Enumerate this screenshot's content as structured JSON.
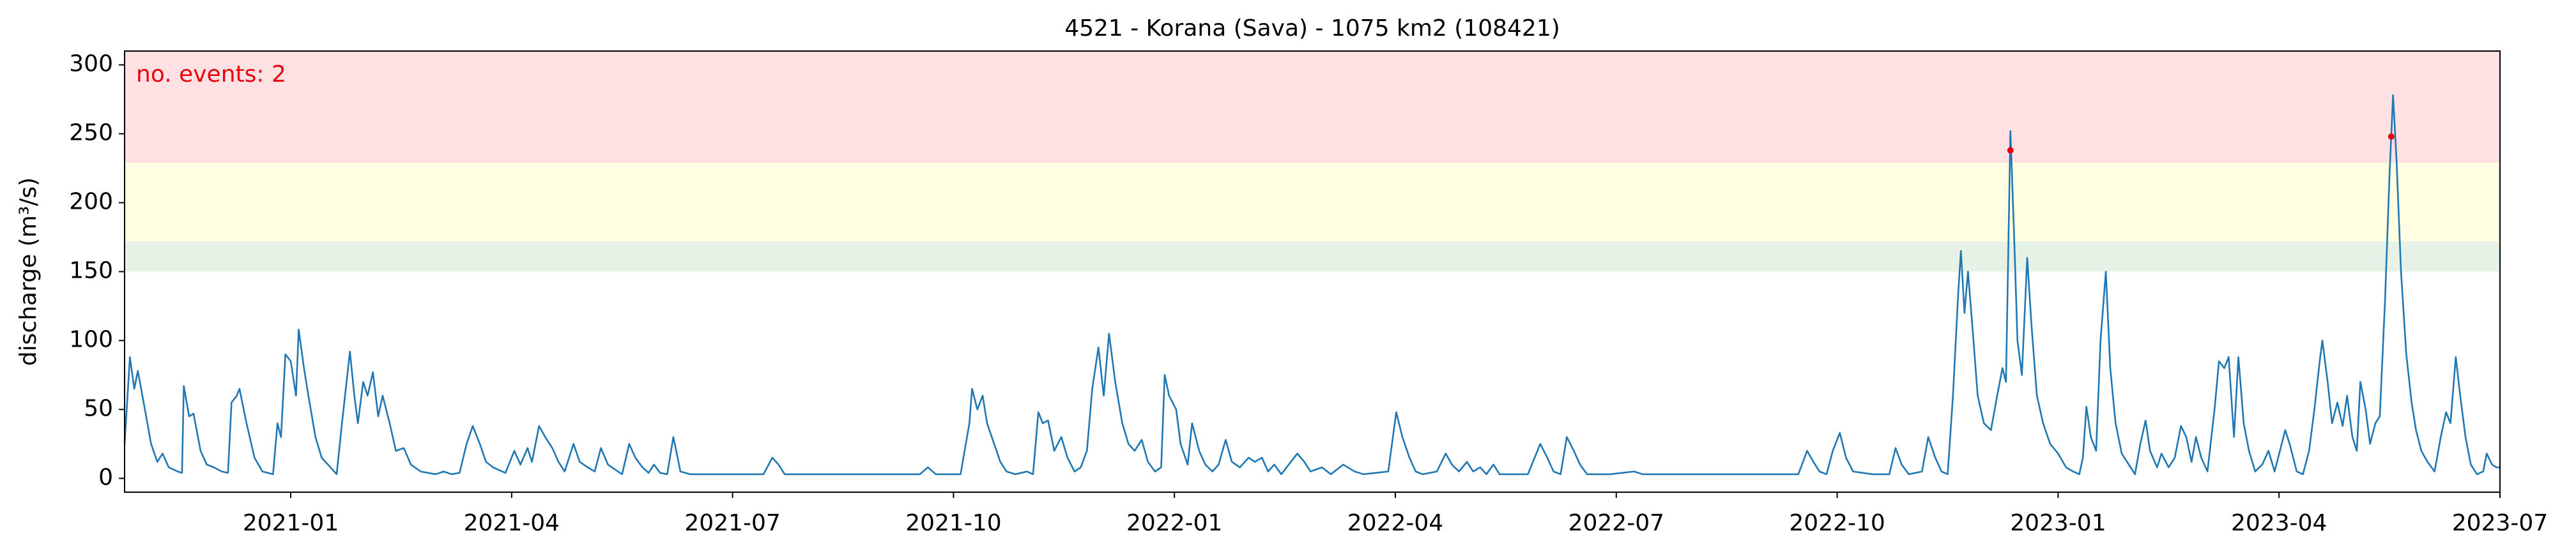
{
  "chart_data": {
    "type": "line",
    "title": "4521 - Korana (Sava) - 1075 km2 (108421)",
    "ylabel": "discharge (m³/s)",
    "annotation": "no. events: 2",
    "xlim": [
      2020.812,
      2023.5
    ],
    "ylim": [
      -10,
      310
    ],
    "xticks": [
      {
        "value": 2021,
        "label": "2021-01"
      },
      {
        "value": 2021.25,
        "label": "2021-04"
      },
      {
        "value": 2021.5,
        "label": "2021-07"
      },
      {
        "value": 2021.75,
        "label": "2021-10"
      },
      {
        "value": 2022,
        "label": "2022-01"
      },
      {
        "value": 2022.25,
        "label": "2022-04"
      },
      {
        "value": 2022.5,
        "label": "2022-07"
      },
      {
        "value": 2022.75,
        "label": "2022-10"
      },
      {
        "value": 2023,
        "label": "2023-01"
      },
      {
        "value": 2023.25,
        "label": "2023-04"
      },
      {
        "value": 2023.5,
        "label": "2023-07"
      }
    ],
    "yticks": [
      0,
      50,
      100,
      150,
      200,
      250,
      300
    ],
    "grid": false,
    "bands": [
      {
        "from": 150,
        "to": 172,
        "color": "#e6f2e6"
      },
      {
        "from": 172,
        "to": 229,
        "color": "#fffee3"
      },
      {
        "from": 229,
        "to": 310,
        "color": "#ffe1e3"
      }
    ],
    "x": [
      2020.812,
      2020.818,
      2020.823,
      2020.827,
      2020.835,
      2020.842,
      2020.849,
      2020.855,
      2020.862,
      2020.872,
      2020.877,
      2020.879,
      2020.885,
      2020.89,
      2020.898,
      2020.905,
      2020.913,
      2020.922,
      2020.929,
      2020.933,
      2020.939,
      2020.942,
      2020.95,
      2020.959,
      2020.968,
      2020.98,
      2020.985,
      2020.989,
      2020.994,
      2021.0,
      2021.006,
      2021.009,
      2021.015,
      2021.02,
      2021.028,
      2021.035,
      2021.045,
      2021.052,
      2021.058,
      2021.067,
      2021.072,
      2021.076,
      2021.082,
      2021.087,
      2021.093,
      2021.099,
      2021.104,
      2021.112,
      2021.119,
      2021.128,
      2021.136,
      2021.147,
      2021.164,
      2021.173,
      2021.182,
      2021.191,
      2021.199,
      2021.206,
      2021.214,
      2021.221,
      2021.229,
      2021.243,
      2021.253,
      2021.26,
      2021.268,
      2021.273,
      2021.281,
      2021.288,
      2021.296,
      2021.303,
      2021.31,
      2021.32,
      2021.327,
      2021.336,
      2021.344,
      2021.351,
      2021.359,
      2021.368,
      2021.375,
      2021.383,
      2021.39,
      2021.398,
      2021.405,
      2021.411,
      2021.418,
      2021.426,
      2021.433,
      2021.441,
      2021.452,
      2021.489,
      2021.535,
      2021.545,
      2021.552,
      2021.559,
      2021.6,
      2021.675,
      2021.712,
      2021.721,
      2021.73,
      2021.758,
      2021.768,
      2021.771,
      2021.777,
      2021.783,
      2021.788,
      2021.796,
      2021.803,
      2021.81,
      2021.82,
      2021.833,
      2021.84,
      2021.846,
      2021.851,
      2021.857,
      2021.864,
      2021.872,
      2021.879,
      2021.887,
      2021.894,
      2021.901,
      2021.907,
      2021.914,
      2021.92,
      2021.926,
      2021.933,
      2021.941,
      2021.948,
      2021.955,
      2021.963,
      2021.97,
      2021.978,
      2021.985,
      2021.989,
      2021.994,
      2022.002,
      2022.007,
      2022.015,
      2022.02,
      2022.028,
      2022.035,
      2022.043,
      2022.05,
      2022.058,
      2022.065,
      2022.074,
      2022.084,
      2022.091,
      2022.099,
      2022.106,
      2022.113,
      2022.121,
      2022.139,
      2022.147,
      2022.154,
      2022.167,
      2022.177,
      2022.191,
      2022.204,
      2022.214,
      2022.242,
      2022.251,
      2022.258,
      2022.266,
      2022.273,
      2022.281,
      2022.297,
      2022.307,
      2022.314,
      2022.322,
      2022.331,
      2022.338,
      2022.346,
      2022.353,
      2022.361,
      2022.368,
      2022.4,
      2022.414,
      2022.422,
      2022.429,
      2022.437,
      2022.444,
      2022.452,
      2022.459,
      2022.467,
      2022.493,
      2022.52,
      2022.53,
      2022.585,
      2022.678,
      2022.706,
      2022.716,
      2022.723,
      2022.73,
      2022.738,
      2022.745,
      2022.753,
      2022.76,
      2022.768,
      2022.79,
      2022.809,
      2022.816,
      2022.823,
      2022.831,
      2022.846,
      2022.853,
      2022.861,
      2022.868,
      2022.875,
      2022.881,
      2022.887,
      2022.89,
      2022.894,
      2022.898,
      2022.903,
      2022.909,
      2022.916,
      2022.924,
      2022.931,
      2022.937,
      2022.941,
      2022.946,
      2022.95,
      2022.954,
      2022.959,
      2022.965,
      2022.97,
      2022.976,
      2022.983,
      2022.991,
      2023.0,
      2023.009,
      2023.017,
      2023.024,
      2023.028,
      2023.032,
      2023.037,
      2023.043,
      2023.048,
      2023.054,
      2023.059,
      2023.065,
      2023.072,
      2023.082,
      2023.087,
      2023.093,
      2023.099,
      2023.104,
      2023.112,
      2023.117,
      2023.125,
      2023.132,
      2023.139,
      2023.145,
      2023.151,
      2023.156,
      2023.162,
      2023.169,
      2023.177,
      2023.182,
      2023.188,
      2023.193,
      2023.199,
      2023.204,
      2023.21,
      2023.216,
      2023.223,
      2023.231,
      2023.238,
      2023.245,
      2023.251,
      2023.257,
      2023.262,
      2023.27,
      2023.277,
      2023.284,
      2023.29,
      2023.296,
      2023.299,
      2023.305,
      2023.31,
      2023.316,
      2023.322,
      2023.327,
      2023.333,
      2023.338,
      2023.342,
      2023.348,
      2023.353,
      2023.359,
      2023.364,
      2023.37,
      2023.375,
      2023.379,
      2023.383,
      2023.388,
      2023.394,
      2023.4,
      2023.405,
      2023.411,
      2023.418,
      2023.426,
      2023.433,
      2023.439,
      2023.444,
      2023.45,
      2023.455,
      2023.461,
      2023.467,
      2023.474,
      2023.481,
      2023.485,
      2023.491,
      2023.496,
      2023.5
    ],
    "series": [
      {
        "color": "#1f77b4",
        "values": [
          25,
          88,
          65,
          78,
          50,
          25,
          12,
          18,
          8,
          5,
          4,
          67,
          45,
          47,
          20,
          10,
          8,
          5,
          4,
          55,
          60,
          65,
          40,
          15,
          5,
          3,
          40,
          30,
          90,
          85,
          60,
          108,
          80,
          60,
          30,
          15,
          8,
          3,
          40,
          92,
          60,
          40,
          70,
          60,
          77,
          45,
          60,
          40,
          20,
          22,
          10,
          5,
          3,
          5,
          3,
          4,
          25,
          38,
          25,
          12,
          8,
          4,
          20,
          10,
          22,
          12,
          38,
          30,
          22,
          12,
          5,
          25,
          12,
          8,
          5,
          22,
          10,
          6,
          3,
          25,
          15,
          8,
          4,
          10,
          4,
          3,
          30,
          5,
          3,
          3,
          3,
          15,
          10,
          3,
          3,
          3,
          3,
          8,
          3,
          3,
          40,
          65,
          50,
          60,
          40,
          25,
          12,
          5,
          3,
          5,
          3,
          48,
          40,
          42,
          20,
          30,
          15,
          5,
          8,
          20,
          65,
          95,
          60,
          105,
          70,
          40,
          25,
          20,
          28,
          12,
          5,
          8,
          75,
          60,
          50,
          25,
          10,
          40,
          20,
          10,
          5,
          10,
          28,
          12,
          8,
          15,
          12,
          15,
          5,
          10,
          3,
          18,
          12,
          5,
          8,
          3,
          10,
          5,
          3,
          5,
          48,
          30,
          15,
          5,
          3,
          5,
          18,
          10,
          5,
          12,
          5,
          8,
          3,
          10,
          3,
          3,
          25,
          15,
          5,
          3,
          30,
          20,
          10,
          3,
          3,
          5,
          3,
          3,
          3,
          3,
          20,
          12,
          5,
          3,
          20,
          33,
          15,
          5,
          3,
          3,
          22,
          10,
          3,
          5,
          30,
          15,
          5,
          3,
          60,
          135,
          165,
          120,
          150,
          110,
          60,
          40,
          35,
          60,
          80,
          70,
          252,
          180,
          100,
          75,
          160,
          110,
          60,
          40,
          25,
          18,
          8,
          5,
          3,
          15,
          52,
          30,
          20,
          100,
          150,
          80,
          40,
          18,
          8,
          3,
          25,
          42,
          20,
          8,
          18,
          8,
          15,
          38,
          30,
          12,
          30,
          15,
          5,
          50,
          85,
          80,
          88,
          30,
          88,
          40,
          20,
          5,
          10,
          20,
          5,
          20,
          35,
          25,
          5,
          3,
          20,
          50,
          85,
          100,
          70,
          40,
          55,
          38,
          60,
          30,
          20,
          70,
          50,
          25,
          40,
          45,
          130,
          220,
          278,
          230,
          150,
          90,
          55,
          35,
          20,
          12,
          5,
          30,
          48,
          40,
          88,
          60,
          30,
          10,
          3,
          5,
          18,
          10,
          8,
          8
        ]
      }
    ],
    "events": {
      "color": "#e8000b",
      "x": [
        2022.946,
        2023.377
      ],
      "values": [
        238,
        248
      ]
    }
  }
}
